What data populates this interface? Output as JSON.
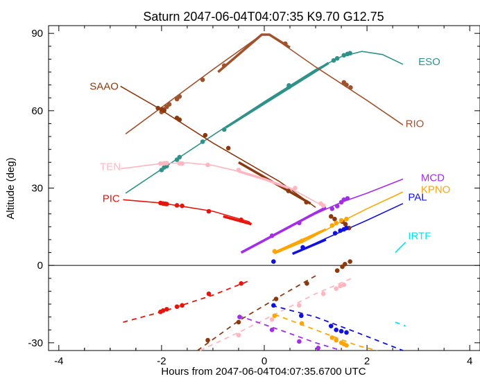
{
  "chart_data": {
    "type": "line",
    "title": "Saturn 2047-06-04T04:07:35  K9.70  G12.75",
    "xlabel": "Hours from 2047-06-04T04:07:35.6700 UTC",
    "ylabel": "Altitude (deg)",
    "xlim": [
      -4.2,
      4.2
    ],
    "ylim": [
      -33,
      93
    ],
    "xticks": [
      -4,
      -2,
      0,
      2,
      4
    ],
    "xtick_labels": [
      "-4",
      "-2",
      "0",
      "2",
      "4"
    ],
    "yticks": [
      -30,
      0,
      30,
      60,
      90
    ],
    "ytick_labels": [
      "-30",
      "0",
      "30",
      "60",
      "90"
    ],
    "grid": false,
    "zero_line": 0,
    "series": [
      {
        "name": "ESO",
        "color": "#2e918a",
        "label_xy": [
          3.0,
          79
        ],
        "thin": [
          [
            -2.7,
            28
          ],
          [
            -2,
            37.3
          ],
          [
            -1,
            50.5
          ],
          [
            0,
            63.5
          ],
          [
            1,
            76
          ],
          [
            1.5,
            81
          ],
          [
            1.9,
            83
          ],
          [
            2.3,
            81.8
          ],
          [
            2.7,
            78
          ]
        ],
        "thick": [
          [
            -0.75,
            53.5
          ],
          [
            1.25,
            78.5
          ]
        ],
        "dots": [
          [
            -2,
            37
          ],
          [
            -1.95,
            38
          ],
          [
            -1.9,
            38.5
          ],
          [
            -1.7,
            41
          ],
          [
            -1.65,
            42
          ],
          [
            -1.2,
            48
          ],
          [
            -0.78,
            52.7
          ],
          [
            0.48,
            69.2
          ],
          [
            0.48,
            69.8
          ],
          [
            1.35,
            79.5
          ],
          [
            1.42,
            80.3
          ],
          [
            1.55,
            81.5
          ],
          [
            1.62,
            82
          ],
          [
            1.67,
            82.3
          ]
        ],
        "neg_dash": [],
        "neg_dots": []
      },
      {
        "name": "RIO",
        "color": "#a0522d",
        "label_xy": [
          2.75,
          55
        ],
        "thin": [
          [
            -2.7,
            51
          ],
          [
            -1,
            76
          ],
          [
            -0.05,
            89.5
          ],
          [
            0.1,
            89.5
          ],
          [
            1,
            77
          ],
          [
            2,
            64
          ],
          [
            2.7,
            54.5
          ]
        ],
        "thick": [
          [
            -0.9,
            75
          ],
          [
            -0.05,
            89.5
          ],
          [
            0.1,
            89.5
          ],
          [
            0.5,
            84.5
          ]
        ],
        "dots": [
          [
            -2,
            59.5
          ],
          [
            -1.95,
            60.5
          ],
          [
            -1.9,
            61.5
          ],
          [
            -1.85,
            62.5
          ],
          [
            -1.7,
            64.5
          ],
          [
            -1.65,
            65.5
          ],
          [
            -1.2,
            72
          ],
          [
            -0.78,
            77.5
          ],
          [
            0.41,
            86
          ],
          [
            1.55,
            71
          ],
          [
            1.6,
            70
          ],
          [
            1.68,
            69
          ]
        ],
        "neg_dash": [],
        "neg_dots": []
      },
      {
        "name": "SAAO",
        "color": "#8b3a0f",
        "label_xy": [
          -3.4,
          69.5
        ],
        "thin": [
          [
            -2.8,
            69.5
          ],
          [
            -2.1,
            61.5
          ],
          [
            -1,
            47.5
          ],
          [
            0.3,
            32.5
          ],
          [
            1.0,
            22.5
          ]
        ],
        "thick": [
          [
            -0.5,
            40
          ],
          [
            0.3,
            30.8
          ],
          [
            0.9,
            24
          ]
        ],
        "dots": [
          [
            -2.07,
            61
          ],
          [
            -2,
            60.5
          ],
          [
            -1.95,
            60
          ],
          [
            -1.7,
            57.2
          ],
          [
            -1.65,
            56.5
          ],
          [
            -1.15,
            50.5
          ],
          [
            -0.7,
            45.5
          ],
          [
            0.47,
            28.9
          ],
          [
            0.82,
            24.5
          ],
          [
            1.3,
            19
          ],
          [
            1.37,
            18
          ],
          [
            1.52,
            17
          ],
          [
            1.58,
            16
          ],
          [
            1.65,
            14.5
          ]
        ],
        "neg_dash": [
          [
            -1.3,
            -33
          ],
          [
            -0.5,
            -21.5
          ],
          [
            0.3,
            -12
          ],
          [
            1.0,
            -4
          ]
        ],
        "neg_dots": [
          [
            -1.1,
            -29
          ],
          [
            -0.5,
            -22
          ],
          [
            0.23,
            -13
          ],
          [
            0.83,
            -7
          ],
          [
            1.42,
            -2
          ],
          [
            1.52,
            -0.5
          ],
          [
            1.57,
            0.5
          ],
          [
            1.67,
            1.5
          ]
        ]
      },
      {
        "name": "TEN",
        "color": "#ffb6c1",
        "label_xy": [
          -3.2,
          38.3
        ],
        "thin": [
          [
            -2.8,
            37.5
          ],
          [
            -2,
            39.5
          ],
          [
            -1.5,
            39.8
          ],
          [
            -1,
            38.8
          ],
          [
            -0.5,
            36.5
          ],
          [
            0,
            33.5
          ],
          [
            0.5,
            30
          ],
          [
            1.2,
            22.5
          ]
        ],
        "thick": [
          [
            -0.5,
            36.5
          ],
          [
            0,
            33.5
          ],
          [
            0.55,
            29.5
          ]
        ],
        "dots": [
          [
            -2.02,
            39.5
          ],
          [
            -1.95,
            39.6
          ],
          [
            -1.9,
            39.7
          ],
          [
            -1.65,
            39.6
          ],
          [
            -1.6,
            39.5
          ],
          [
            -1.1,
            39
          ],
          [
            -0.5,
            37
          ],
          [
            0.6,
            30
          ],
          [
            1.1,
            24
          ],
          [
            1.15,
            23.2
          ]
        ],
        "neg_dash": [
          [
            -1.25,
            -33
          ],
          [
            -0.5,
            -26
          ],
          [
            0.3,
            -18
          ],
          [
            1.0,
            -11
          ],
          [
            1.7,
            -5
          ]
        ],
        "neg_dots": [
          [
            -0.5,
            -27
          ],
          [
            0.15,
            -21
          ],
          [
            0.68,
            -15.5
          ],
          [
            1.15,
            -11
          ],
          [
            1.4,
            -9
          ],
          [
            1.48,
            -8
          ],
          [
            1.55,
            -7.5
          ]
        ]
      },
      {
        "name": "PIC",
        "color": "#e8140a",
        "label_xy": [
          -3.15,
          26
        ],
        "thin": [
          [
            -2.75,
            25.5
          ],
          [
            -2,
            24.2
          ],
          [
            -1,
            21
          ],
          [
            -0.3,
            17
          ],
          [
            -0.25,
            16
          ]
        ],
        "thick": [
          [
            -0.8,
            19
          ],
          [
            -0.25,
            16
          ]
        ],
        "dots": [
          [
            -2.02,
            24.2
          ],
          [
            -1.97,
            24
          ],
          [
            -1.93,
            23.9
          ],
          [
            -1.9,
            23.8
          ],
          [
            -1.7,
            23.3
          ],
          [
            -1.6,
            23.1
          ],
          [
            -1.08,
            21
          ],
          [
            -0.45,
            17.7
          ]
        ],
        "neg_dash": [
          [
            -2.75,
            -22
          ],
          [
            -2,
            -18
          ],
          [
            -1,
            -11.5
          ],
          [
            -0.3,
            -6
          ]
        ],
        "neg_dots": [
          [
            -2.02,
            -18
          ],
          [
            -1.97,
            -17.5
          ],
          [
            -1.9,
            -17
          ],
          [
            -1.7,
            -16
          ],
          [
            -1.6,
            -15.5
          ],
          [
            -1.08,
            -11
          ],
          [
            -0.45,
            -7
          ]
        ]
      },
      {
        "name": "MCD",
        "color": "#a32de8",
        "label_xy": [
          3.05,
          34
        ],
        "thin": [
          [
            -0.45,
            5
          ],
          [
            0,
            9.5
          ],
          [
            0.5,
            15
          ],
          [
            1,
            20
          ],
          [
            1.5,
            24.5
          ],
          [
            2,
            28
          ],
          [
            2.7,
            33.5
          ]
        ],
        "thick": [
          [
            -0.45,
            5
          ],
          [
            1.2,
            22.5
          ]
        ],
        "dots": [
          [
            0.15,
            11.5
          ],
          [
            0.68,
            16.5
          ],
          [
            1.32,
            22
          ],
          [
            1.42,
            23
          ],
          [
            1.5,
            24.5
          ],
          [
            1.55,
            25.5
          ],
          [
            1.62,
            26
          ]
        ],
        "neg_dash": [
          [
            -0.5,
            -19.5
          ],
          [
            0.3,
            -25
          ],
          [
            1.0,
            -30
          ],
          [
            1.5,
            -33
          ]
        ],
        "neg_dots": [
          [
            -0.48,
            -20
          ],
          [
            0.15,
            -25
          ],
          [
            0.68,
            -29.5
          ],
          [
            1.05,
            -32
          ]
        ]
      },
      {
        "name": "KPNO",
        "color": "#ffa500",
        "label_xy": [
          3.05,
          29.5
        ],
        "thin": [
          [
            0.2,
            4.5
          ],
          [
            0.8,
            9.5
          ],
          [
            1.5,
            17
          ],
          [
            2,
            22
          ],
          [
            2.7,
            28.5
          ]
        ],
        "thick": [
          [
            0.2,
            5
          ],
          [
            1.2,
            14
          ]
        ],
        "dots": [
          [
            0.2,
            5.5
          ],
          [
            0.73,
            9.5
          ],
          [
            1.32,
            15.5
          ],
          [
            1.4,
            16.5
          ],
          [
            1.5,
            17.5
          ],
          [
            1.6,
            18
          ]
        ],
        "neg_dash": [
          [
            0.2,
            -19
          ],
          [
            1.0,
            -25
          ],
          [
            1.8,
            -31
          ],
          [
            2.2,
            -33
          ]
        ],
        "neg_dots": [
          [
            0.2,
            -19.5
          ],
          [
            0.73,
            -22.5
          ],
          [
            1.32,
            -28
          ],
          [
            1.4,
            -29
          ],
          [
            1.5,
            -30
          ],
          [
            1.55,
            -30.5
          ],
          [
            1.6,
            -31
          ]
        ]
      },
      {
        "name": "PAL",
        "color": "#1010e0",
        "label_xy": [
          2.8,
          26.5
        ],
        "thin": [
          [
            0.55,
            4.5
          ],
          [
            1.2,
            10.5
          ],
          [
            2,
            17.5
          ],
          [
            2.7,
            24
          ]
        ],
        "thick": [
          [
            0.55,
            4.5
          ],
          [
            1.2,
            10
          ]
        ],
        "dots": [
          [
            0.18,
            1.5
          ],
          [
            0.75,
            7
          ],
          [
            1.38,
            12.5
          ],
          [
            1.48,
            13.5
          ],
          [
            1.55,
            14
          ],
          [
            1.6,
            14.5
          ]
        ],
        "neg_dash": [
          [
            0.15,
            -15.5
          ],
          [
            1.0,
            -20
          ],
          [
            1.8,
            -26
          ],
          [
            2.7,
            -33
          ]
        ],
        "neg_dots": [
          [
            0.18,
            -15.5
          ],
          [
            0.72,
            -19.5
          ],
          [
            1.3,
            -23.5
          ],
          [
            1.4,
            -25
          ],
          [
            1.5,
            -25.5
          ],
          [
            1.6,
            -26
          ]
        ]
      },
      {
        "name": "IRTF",
        "color": "#00e5ee",
        "label_xy": [
          2.8,
          11.5
        ],
        "thin": [
          [
            2.55,
            5
          ],
          [
            2.75,
            9
          ]
        ],
        "thick": [],
        "dots": [],
        "neg_dash": [
          [
            2.55,
            -22
          ],
          [
            2.75,
            -23.5
          ]
        ],
        "neg_dots": []
      }
    ]
  }
}
